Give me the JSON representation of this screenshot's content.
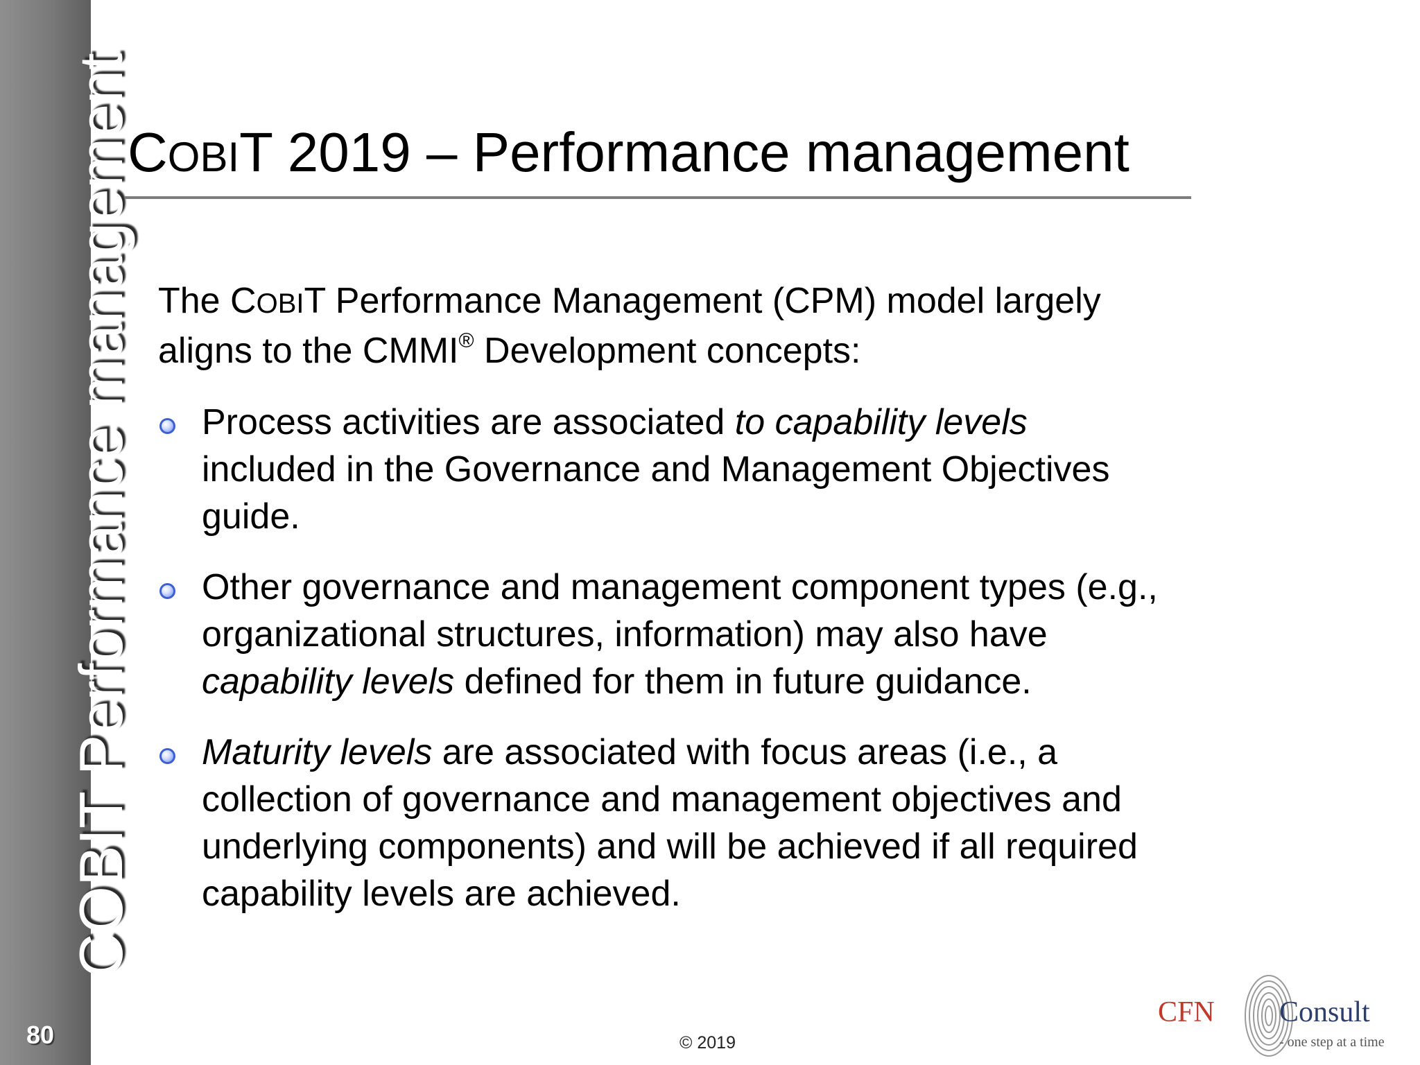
{
  "sidebar": {
    "vertical_title": "COBIT Performance management",
    "page_number": "80"
  },
  "slide": {
    "title_c": "C",
    "title_obi": "OBI",
    "title_rest": "T 2019 – Performance management",
    "intro_p1": "The C",
    "intro_obi": "OBI",
    "intro_p2": "T Performance Management (CPM) model largely aligns to the CMMI",
    "intro_sup": "®",
    "intro_p3": " Development concepts:",
    "bullets": [
      {
        "a": "Process activities are associated ",
        "a_em": "to capability levels",
        "b": " included in the Governance and Management Objectives guide."
      },
      {
        "a": "Other governance and management component types (e.g., organizational structures, information) may also have ",
        "a_em": "capability levels",
        "b": " defined for them in future guidance."
      },
      {
        "em": "Maturity levels",
        "b": " are associated with focus areas (i.e., a collection of governance and management objectives and underlying components) and will be achieved if all required capability levels are achieved."
      }
    ]
  },
  "footer": {
    "copyright": "© 2019"
  },
  "logo": {
    "left_text": "CFN",
    "right_text": "Consult",
    "tagline": "- one step at a time",
    "icon": "fingerprint-icon"
  },
  "colors": {
    "sidebar_gray": "#7a7a7a",
    "bullet_blue": "#3c5fd4",
    "logo_red": "#c0392b",
    "logo_navy": "#2c3e6b"
  }
}
